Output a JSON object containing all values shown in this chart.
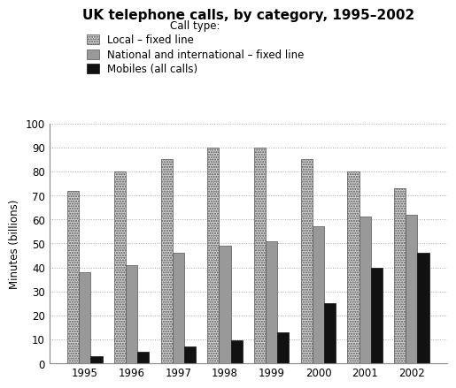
{
  "title": "UK telephone calls, by category, 1995–2002",
  "ylabel": "Minutes (billions)",
  "legend_title": "Call type:",
  "categories": [
    "1995",
    "1996",
    "1997",
    "1998",
    "1999",
    "2000",
    "2001",
    "2002"
  ],
  "local_fixed": [
    72,
    80,
    85,
    90,
    90,
    85,
    80,
    73
  ],
  "national_fixed": [
    38,
    41,
    46,
    49,
    51,
    57,
    61,
    62
  ],
  "mobiles": [
    3,
    5,
    7,
    9.5,
    13,
    25,
    40,
    46
  ],
  "ylim": [
    0,
    100
  ],
  "yticks": [
    0,
    10,
    20,
    30,
    40,
    50,
    60,
    70,
    80,
    90,
    100
  ],
  "local_color": "#d0d0d0",
  "national_color": "#999999",
  "mobile_color": "#111111",
  "legend_labels": [
    "Local – fixed line",
    "National and international – fixed line",
    "Mobiles (all calls)"
  ],
  "bar_width": 0.25,
  "background_color": "#ffffff",
  "title_fontsize": 11,
  "axis_fontsize": 8.5,
  "legend_fontsize": 8.5,
  "legend_title_fontsize": 8.5
}
